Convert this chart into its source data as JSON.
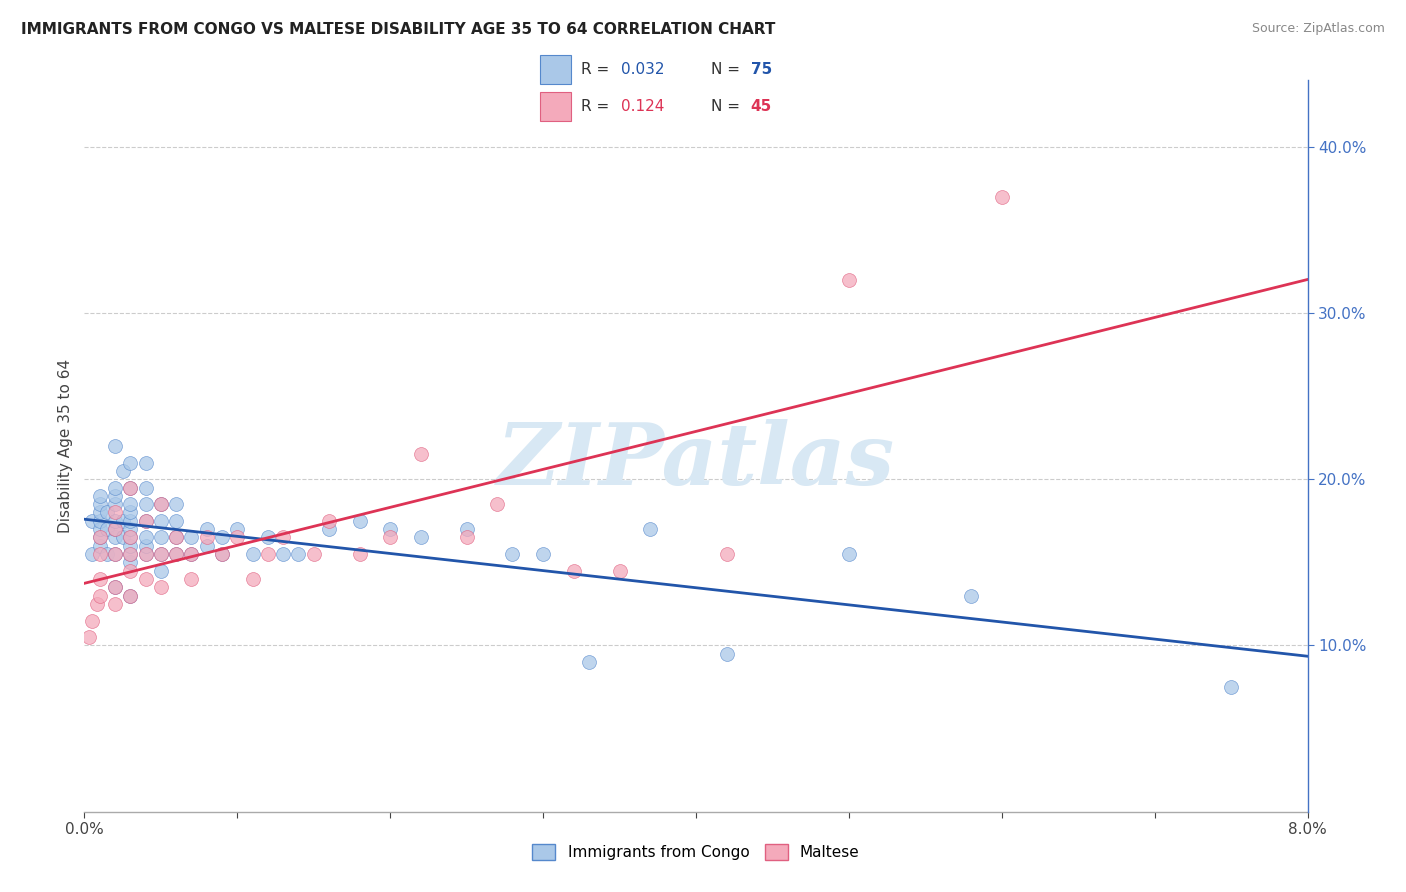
{
  "title": "IMMIGRANTS FROM CONGO VS MALTESE DISABILITY AGE 35 TO 64 CORRELATION CHART",
  "source": "Source: ZipAtlas.com",
  "ylabel": "Disability Age 35 to 64",
  "yaxis_ticks": [
    "10.0%",
    "20.0%",
    "30.0%",
    "40.0%"
  ],
  "yaxis_tick_values": [
    0.1,
    0.2,
    0.3,
    0.4
  ],
  "xaxis_range": [
    0.0,
    0.08
  ],
  "yaxis_range": [
    0.0,
    0.44
  ],
  "series1_name": "Immigrants from Congo",
  "series2_name": "Maltese",
  "series1_color": "#aac8e8",
  "series2_color": "#f4aabb",
  "series1_edge_color": "#5588cc",
  "series2_edge_color": "#e06080",
  "line1_color": "#2255aa",
  "line2_color": "#dd3355",
  "marker_size": 100,
  "r1": 0.032,
  "n1": 75,
  "r2": 0.124,
  "n2": 45,
  "congo_x": [
    0.0005,
    0.0005,
    0.001,
    0.001,
    0.001,
    0.001,
    0.001,
    0.001,
    0.001,
    0.0015,
    0.0015,
    0.0015,
    0.002,
    0.002,
    0.002,
    0.002,
    0.002,
    0.002,
    0.002,
    0.002,
    0.002,
    0.0025,
    0.0025,
    0.0025,
    0.003,
    0.003,
    0.003,
    0.003,
    0.003,
    0.003,
    0.003,
    0.003,
    0.003,
    0.003,
    0.003,
    0.004,
    0.004,
    0.004,
    0.004,
    0.004,
    0.004,
    0.004,
    0.005,
    0.005,
    0.005,
    0.005,
    0.005,
    0.006,
    0.006,
    0.006,
    0.006,
    0.007,
    0.007,
    0.008,
    0.008,
    0.009,
    0.009,
    0.01,
    0.011,
    0.012,
    0.013,
    0.014,
    0.016,
    0.018,
    0.02,
    0.022,
    0.025,
    0.028,
    0.03,
    0.033,
    0.037,
    0.042,
    0.05,
    0.058,
    0.075
  ],
  "congo_y": [
    0.155,
    0.175,
    0.16,
    0.165,
    0.17,
    0.175,
    0.18,
    0.185,
    0.19,
    0.155,
    0.17,
    0.18,
    0.135,
    0.155,
    0.165,
    0.17,
    0.175,
    0.185,
    0.19,
    0.195,
    0.22,
    0.165,
    0.175,
    0.205,
    0.13,
    0.15,
    0.155,
    0.16,
    0.165,
    0.17,
    0.175,
    0.18,
    0.185,
    0.195,
    0.21,
    0.155,
    0.16,
    0.165,
    0.175,
    0.185,
    0.195,
    0.21,
    0.145,
    0.155,
    0.165,
    0.175,
    0.185,
    0.155,
    0.165,
    0.175,
    0.185,
    0.155,
    0.165,
    0.16,
    0.17,
    0.155,
    0.165,
    0.17,
    0.155,
    0.165,
    0.155,
    0.155,
    0.17,
    0.175,
    0.17,
    0.165,
    0.17,
    0.155,
    0.155,
    0.09,
    0.17,
    0.095,
    0.155,
    0.13,
    0.075
  ],
  "maltese_x": [
    0.0003,
    0.0005,
    0.0008,
    0.001,
    0.001,
    0.001,
    0.001,
    0.002,
    0.002,
    0.002,
    0.002,
    0.002,
    0.003,
    0.003,
    0.003,
    0.003,
    0.003,
    0.004,
    0.004,
    0.004,
    0.005,
    0.005,
    0.005,
    0.006,
    0.006,
    0.007,
    0.007,
    0.008,
    0.009,
    0.01,
    0.011,
    0.012,
    0.013,
    0.015,
    0.016,
    0.018,
    0.02,
    0.022,
    0.025,
    0.027,
    0.032,
    0.035,
    0.042,
    0.05,
    0.06
  ],
  "maltese_y": [
    0.105,
    0.115,
    0.125,
    0.13,
    0.14,
    0.155,
    0.165,
    0.125,
    0.135,
    0.155,
    0.17,
    0.18,
    0.13,
    0.145,
    0.155,
    0.165,
    0.195,
    0.14,
    0.155,
    0.175,
    0.135,
    0.155,
    0.185,
    0.155,
    0.165,
    0.14,
    0.155,
    0.165,
    0.155,
    0.165,
    0.14,
    0.155,
    0.165,
    0.155,
    0.175,
    0.155,
    0.165,
    0.215,
    0.165,
    0.185,
    0.145,
    0.145,
    0.155,
    0.32,
    0.37
  ],
  "watermark_text": "ZIPatlas",
  "background_color": "#ffffff",
  "grid_color": "#cccccc",
  "legend_r_color": "#2255aa",
  "legend_r2_color": "#dd3355"
}
